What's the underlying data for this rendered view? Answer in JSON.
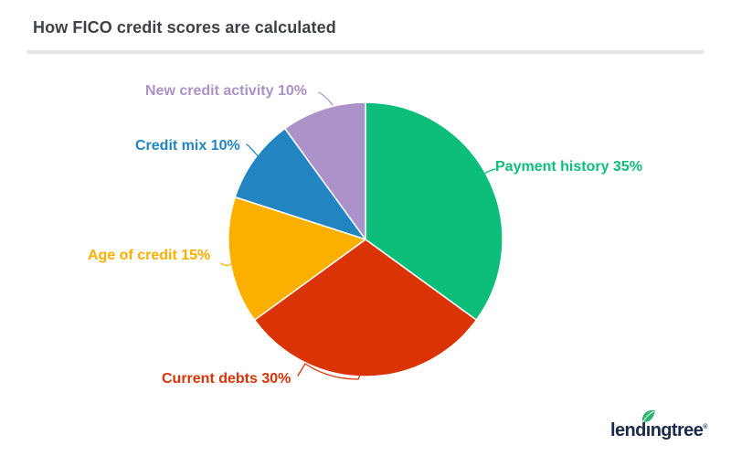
{
  "header": {
    "title": "How FICO credit scores are calculated"
  },
  "chart_data": {
    "type": "pie",
    "title": "How FICO credit scores are calculated",
    "start_angle_deg": 0,
    "direction": "clockwise",
    "unit": "%",
    "legend_position": "labels-around-pie",
    "segments": [
      {
        "id": "payment-history",
        "label": "Payment history",
        "value": 35,
        "display": "Payment history 35%",
        "color": "#0dbd7a"
      },
      {
        "id": "current-debts",
        "label": "Current debts",
        "value": 30,
        "display": "Current debts 30%",
        "color": "#da3305"
      },
      {
        "id": "age-of-credit",
        "label": "Age of credit",
        "value": 15,
        "display": "Age of credit 15%",
        "color": "#fbb000"
      },
      {
        "id": "credit-mix",
        "label": "Credit mix",
        "value": 10,
        "display": "Credit mix 10%",
        "color": "#2285c2"
      },
      {
        "id": "new-credit-activity",
        "label": "New credit activity",
        "value": 10,
        "display": "New credit activity 10%",
        "color": "#ab92c8"
      }
    ]
  },
  "branding": {
    "logo_text": "lendingtree",
    "registered_mark": "®",
    "display": {
      "prefix": "lend",
      "dotless_i": "ı",
      "suffix": "ngtree"
    },
    "leaf_color": "#2db473",
    "text_color": "#1b2a4a"
  }
}
